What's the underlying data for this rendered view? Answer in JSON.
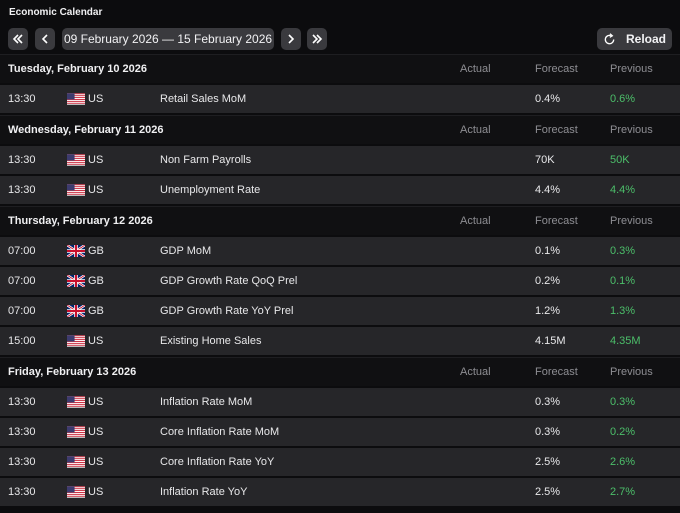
{
  "header": {
    "title": "Economic Calendar",
    "date_range": "09 February 2026 — 15 February 2026",
    "reload": "Reload"
  },
  "days": [
    {
      "date": "Tuesday, February 10 2026",
      "columns": [
        "Actual",
        "Forecast",
        "Previous"
      ],
      "events": [
        {
          "time": "13:30",
          "country": "US",
          "event": "Retail Sales MoM",
          "forecast": "0.4%",
          "previous": "0.6%"
        }
      ]
    },
    {
      "date": "Wednesday, February 11 2026",
      "columns": [
        "Actual",
        "Forecast",
        "Previous"
      ],
      "events": [
        {
          "time": "13:30",
          "country": "US",
          "event": "Non Farm Payrolls",
          "forecast": "70K",
          "previous": "50K"
        },
        {
          "time": "13:30",
          "country": "US",
          "event": "Unemployment Rate",
          "forecast": "4.4%",
          "previous": "4.4%"
        }
      ]
    },
    {
      "date": "Thursday, February 12 2026",
      "columns": [
        "Actual",
        "Forecast",
        "Previous"
      ],
      "events": [
        {
          "time": "07:00",
          "country": "GB",
          "event": "GDP MoM",
          "forecast": "0.1%",
          "previous": "0.3%"
        },
        {
          "time": "07:00",
          "country": "GB",
          "event": "GDP Growth Rate QoQ Prel",
          "forecast": "0.2%",
          "previous": "0.1%"
        },
        {
          "time": "07:00",
          "country": "GB",
          "event": "GDP Growth Rate YoY Prel",
          "forecast": "1.2%",
          "previous": "1.3%"
        },
        {
          "time": "15:00",
          "country": "US",
          "event": "Existing Home Sales",
          "forecast": "4.15M",
          "previous": "4.35M"
        }
      ]
    },
    {
      "date": "Friday, February 13 2026",
      "columns": [
        "Actual",
        "Forecast",
        "Previous"
      ],
      "events": [
        {
          "time": "13:30",
          "country": "US",
          "event": "Inflation Rate MoM",
          "forecast": "0.3%",
          "previous": "0.3%"
        },
        {
          "time": "13:30",
          "country": "US",
          "event": "Core Inflation Rate MoM",
          "forecast": "0.3%",
          "previous": "0.2%"
        },
        {
          "time": "13:30",
          "country": "US",
          "event": "Core Inflation Rate YoY",
          "forecast": "2.5%",
          "previous": "2.6%"
        },
        {
          "time": "13:30",
          "country": "US",
          "event": "Inflation Rate YoY",
          "forecast": "2.5%",
          "previous": "2.7%"
        }
      ]
    }
  ]
}
